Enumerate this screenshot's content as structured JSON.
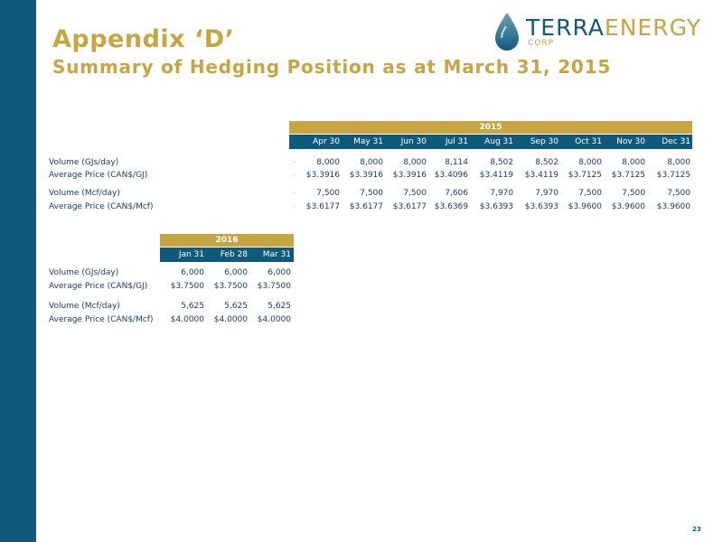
{
  "header": {
    "title": "Appendix ‘D’",
    "subtitle": "Summary of Hedging Position as at March 31, 2015"
  },
  "logo": {
    "primary": "TERRA",
    "secondary": "ENERGY",
    "tagline": "CORP"
  },
  "table_2015": {
    "year": "2015",
    "columns": [
      "Apr 30",
      "May 31",
      "Jun 30",
      "Jul 31",
      "Aug 31",
      "Sep 30",
      "Oct 31",
      "Nov 30",
      "Dec 31"
    ],
    "rows": [
      {
        "label": "Volume (GJs/day)",
        "values": [
          "8,000",
          "8,000",
          "8,000",
          "8,114",
          "8,502",
          "8,502",
          "8,000",
          "8,000",
          "8,000"
        ]
      },
      {
        "label": "Average Price (CAN$/GJ)",
        "values": [
          "$3.3916",
          "$3.3916",
          "$3.3916",
          "$3.4096",
          "$3.4119",
          "$3.4119",
          "$3.7125",
          "$3.7125",
          "$3.7125"
        ]
      },
      {
        "label": "Volume (Mcf/day)",
        "values": [
          "7,500",
          "7,500",
          "7,500",
          "7,606",
          "7,970",
          "7,970",
          "7,500",
          "7,500",
          "7,500"
        ]
      },
      {
        "label": "Average Price (CAN$/Mcf)",
        "values": [
          "$3.6177",
          "$3.6177",
          "$3.6177",
          "$3.6369",
          "$3.6393",
          "$3.6393",
          "$3.9600",
          "$3.9600",
          "$3.9600"
        ]
      }
    ]
  },
  "table_2016": {
    "year": "2016",
    "columns": [
      "Jan 31",
      "Feb 28",
      "Mar 31"
    ],
    "rows": [
      {
        "label": "Volume (GJs/day)",
        "values": [
          "6,000",
          "6,000",
          "6,000"
        ]
      },
      {
        "label": "Average Price (CAN$/GJ)",
        "values": [
          "$3.7500",
          "$3.7500",
          "$3.7500"
        ]
      },
      {
        "label": "Volume (Mcf/day)",
        "values": [
          "5,625",
          "5,625",
          "5,625"
        ]
      },
      {
        "label": "Average Price (CAN$/Mcf)",
        "values": [
          "$4.0000",
          "$4.0000",
          "$4.0000"
        ]
      }
    ]
  },
  "page_number": "23",
  "colors": {
    "brand_blue": "#0f5a7a",
    "brand_gold": "#c8a543"
  }
}
